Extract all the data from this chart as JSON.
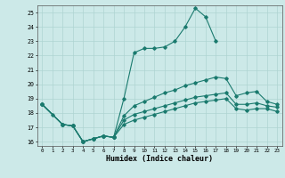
{
  "xlabel": "Humidex (Indice chaleur)",
  "xlim": [
    -0.5,
    23.5
  ],
  "ylim": [
    15.7,
    25.5
  ],
  "background_color": "#cce9e8",
  "grid_color": "#aed4d2",
  "line_color": "#1a7a6e",
  "line1_x": [
    0,
    1,
    2,
    3,
    4,
    5,
    6,
    7,
    8,
    9,
    10,
    11,
    12,
    13,
    14,
    15,
    16,
    17
  ],
  "line1_y": [
    18.6,
    17.9,
    17.2,
    17.1,
    16.0,
    16.2,
    16.4,
    16.3,
    19.0,
    22.2,
    22.5,
    22.5,
    22.6,
    23.0,
    24.0,
    25.3,
    24.7,
    23.0
  ],
  "line2_x": [
    0,
    2,
    3,
    4,
    5,
    6,
    7,
    8,
    9,
    10,
    11,
    12,
    13,
    14,
    15,
    16,
    17,
    18,
    19,
    20,
    21,
    22,
    23
  ],
  "line2_y": [
    18.6,
    17.2,
    17.1,
    16.0,
    16.2,
    16.4,
    16.3,
    17.8,
    18.5,
    18.8,
    19.1,
    19.4,
    19.6,
    19.9,
    20.1,
    20.3,
    20.5,
    20.4,
    19.2,
    19.4,
    19.5,
    18.8,
    18.6
  ],
  "line3_x": [
    0,
    2,
    3,
    4,
    5,
    6,
    7,
    8,
    9,
    10,
    11,
    12,
    13,
    14,
    15,
    16,
    17,
    18,
    19,
    20,
    21,
    22,
    23
  ],
  "line3_y": [
    18.6,
    17.2,
    17.1,
    16.0,
    16.2,
    16.4,
    16.3,
    17.5,
    17.9,
    18.1,
    18.3,
    18.5,
    18.7,
    18.9,
    19.1,
    19.2,
    19.3,
    19.4,
    18.6,
    18.6,
    18.7,
    18.5,
    18.4
  ],
  "line4_x": [
    0,
    2,
    3,
    4,
    5,
    6,
    7,
    8,
    9,
    10,
    11,
    12,
    13,
    14,
    15,
    16,
    17,
    18,
    19,
    20,
    21,
    22,
    23
  ],
  "line4_y": [
    18.6,
    17.2,
    17.1,
    16.0,
    16.2,
    16.4,
    16.3,
    17.2,
    17.5,
    17.7,
    17.9,
    18.1,
    18.3,
    18.5,
    18.7,
    18.8,
    18.9,
    19.0,
    18.3,
    18.2,
    18.3,
    18.3,
    18.1
  ],
  "yticks": [
    16,
    17,
    18,
    19,
    20,
    21,
    22,
    23,
    24,
    25
  ]
}
